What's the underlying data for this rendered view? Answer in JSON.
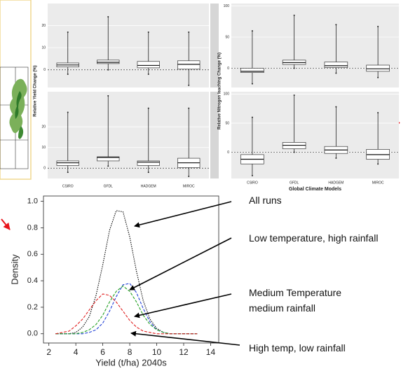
{
  "chart_data": [
    {
      "type": "boxplot",
      "y_label": "Relative Yield Change (%)",
      "categories": [
        "CSIRO",
        "GFDL",
        "HADGEM",
        "MIROC"
      ],
      "reference_line": 0,
      "panels": [
        {
          "ylim": [
            -8,
            30
          ],
          "yticks": [
            0,
            10,
            20
          ],
          "boxes": [
            {
              "low": -2,
              "q1": 1.3,
              "median": 2.2,
              "q3": 3.1,
              "high": 17
            },
            {
              "low": 0,
              "q1": 2.8,
              "median": 3.4,
              "q3": 4.4,
              "high": 24
            },
            {
              "low": -2,
              "q1": 0.9,
              "median": 2,
              "q3": 3.8,
              "high": 17
            },
            {
              "low": -7,
              "q1": 0.3,
              "median": 2.5,
              "q3": 4.1,
              "high": 17
            }
          ]
        },
        {
          "ylim": [
            -5,
            37
          ],
          "yticks": [
            0,
            10,
            20
          ],
          "boxes": [
            {
              "low": -2,
              "q1": 1.3,
              "median": 2.6,
              "q3": 3.5,
              "high": 27
            },
            {
              "low": 1,
              "q1": 3.5,
              "median": 5.2,
              "q3": 5.5,
              "high": 35
            },
            {
              "low": -2,
              "q1": 1.3,
              "median": 2.9,
              "q3": 3.5,
              "high": 29
            },
            {
              "low": -4,
              "q1": 0.3,
              "median": 2.6,
              "q3": 4.8,
              "high": 29
            }
          ]
        }
      ]
    },
    {
      "type": "boxplot",
      "y_label": "Relative Nitrogen leaching Change (%)",
      "x_label": "Global Climate Models",
      "categories": [
        "CSIRO",
        "GFDL",
        "HADGEM",
        "MIROC"
      ],
      "reference_line": 0,
      "panels": [
        {
          "ylim": [
            -31,
            104
          ],
          "yticks": [
            0,
            50,
            100
          ],
          "boxes": [
            {
              "low": -25,
              "q1": -7,
              "median": -5,
              "q3": 0,
              "high": 60
            },
            {
              "low": 0,
              "q1": 6,
              "median": 9,
              "q3": 13,
              "high": 85
            },
            {
              "low": -8,
              "q1": 1,
              "median": 4,
              "q3": 10,
              "high": 70
            },
            {
              "low": -15,
              "q1": -5,
              "median": -1,
              "q3": 5,
              "high": 67
            }
          ]
        },
        {
          "ylim": [
            -45,
            104
          ],
          "yticks": [
            0,
            50,
            100
          ],
          "boxes": [
            {
              "low": -40,
              "q1": -20,
              "median": -12,
              "q3": -4,
              "high": 60
            },
            {
              "low": 0,
              "q1": 6,
              "median": 12,
              "q3": 17,
              "high": 98
            },
            {
              "low": -10,
              "q1": -2,
              "median": 4,
              "q3": 10,
              "high": 78
            },
            {
              "low": -20,
              "q1": -12,
              "median": -4,
              "q3": 5,
              "high": 68
            }
          ]
        }
      ]
    },
    {
      "type": "line",
      "x_label": "Yield (t/ha) 2040s",
      "y_label": "Density",
      "x": [
        2.5,
        3,
        3.5,
        4,
        4.5,
        5,
        5.5,
        6,
        6.5,
        7,
        7.5,
        8,
        8.5,
        9,
        9.5,
        10,
        10.5,
        11,
        11.5,
        12,
        12.5,
        13
      ],
      "xlim": [
        1.6,
        14.6
      ],
      "xticks": [
        2,
        4,
        6,
        8,
        10,
        12,
        14
      ],
      "ylim": [
        -0.07,
        1.04
      ],
      "yticks": [
        {
          "value": 0,
          "label": "0.0"
        },
        0.2,
        0.4,
        0.6,
        0.8,
        {
          "value": 1,
          "label": "1.0"
        }
      ],
      "series": [
        {
          "name": "All runs",
          "color": "#000000",
          "dash": "dotted",
          "values": [
            0,
            0,
            0,
            0.01,
            0.05,
            0.13,
            0.29,
            0.52,
            0.78,
            0.93,
            0.92,
            0.73,
            0.47,
            0.25,
            0.11,
            0.04,
            0.01,
            0,
            0,
            0,
            0,
            0
          ]
        },
        {
          "name": "Low temperature, high rainfall",
          "color": "#1f3fd6",
          "dash": "dashed",
          "values": [
            0,
            0,
            0,
            0,
            0,
            0.01,
            0.03,
            0.08,
            0.17,
            0.28,
            0.37,
            0.38,
            0.31,
            0.19,
            0.09,
            0.03,
            0.01,
            0,
            0,
            0,
            0,
            0
          ]
        },
        {
          "name": "Medium Temperature medium rainfall",
          "color": "#22a022",
          "dash": "dashed",
          "values": [
            0,
            0,
            0,
            0,
            0.01,
            0.03,
            0.07,
            0.14,
            0.24,
            0.32,
            0.36,
            0.32,
            0.24,
            0.14,
            0.07,
            0.03,
            0.01,
            0,
            0,
            0,
            0,
            0
          ]
        },
        {
          "name": "High temp, low rainfall",
          "color": "#e02020",
          "dash": "dashed",
          "values": [
            0,
            0.01,
            0.02,
            0.06,
            0.11,
            0.18,
            0.25,
            0.3,
            0.29,
            0.24,
            0.17,
            0.1,
            0.05,
            0.02,
            0.01,
            0,
            0,
            0,
            0,
            0,
            0,
            0
          ]
        }
      ]
    }
  ]
}
